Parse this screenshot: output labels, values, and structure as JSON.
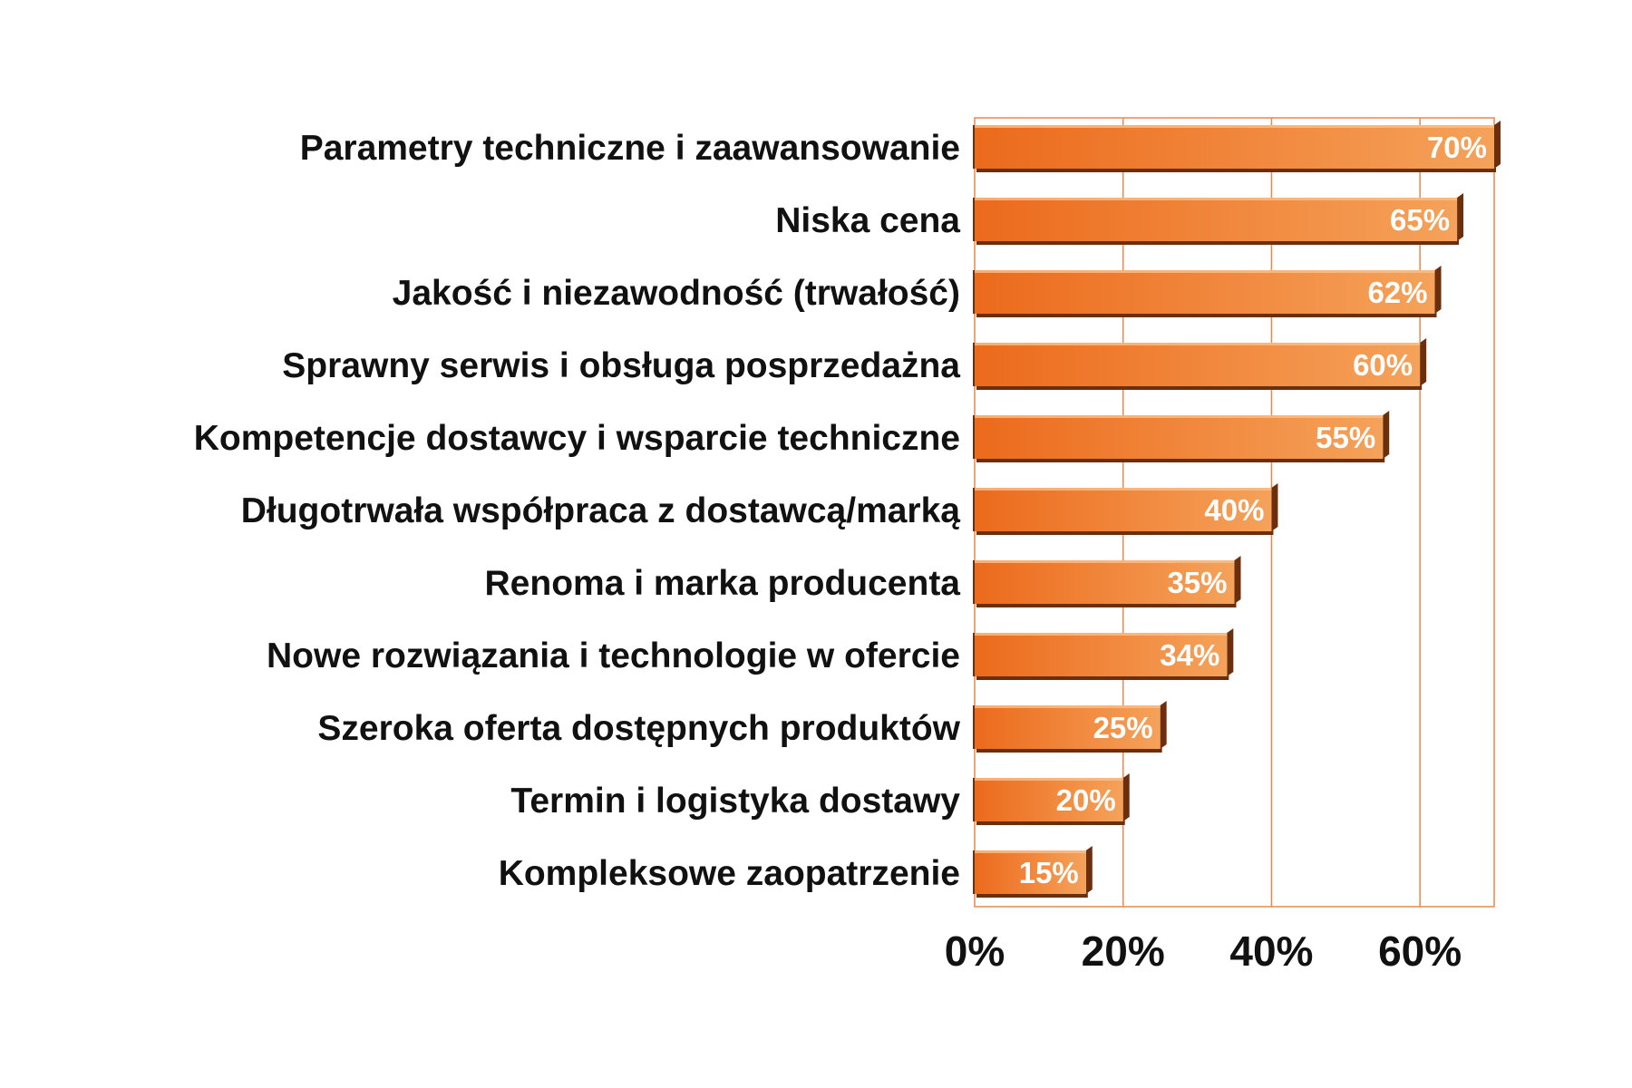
{
  "chart_data": {
    "type": "bar",
    "orientation": "horizontal",
    "title": "",
    "xlabel": "",
    "ylabel": "",
    "categories": [
      "Parametry techniczne i zaawansowanie",
      "Niska cena",
      "Jakość i niezawodność (trwałość)",
      "Sprawny serwis i obsługa posprzedażna",
      "Kompetencje dostawcy i wsparcie techniczne",
      "Długotrwała współpraca z dostawcą/marką",
      "Renoma i marka producenta",
      "Nowe rozwiązania i technologie w ofercie",
      "Szeroka oferta dostępnych produktów",
      "Termin i logistyka dostawy",
      "Kompleksowe zaopatrzenie"
    ],
    "values": [
      70,
      65,
      62,
      60,
      55,
      40,
      35,
      34,
      25,
      20,
      15
    ],
    "value_labels": [
      "70%",
      "65%",
      "62%",
      "60%",
      "55%",
      "40%",
      "35%",
      "34%",
      "25%",
      "20%",
      "15%"
    ],
    "xticks": [
      "0%",
      "20%",
      "40%",
      "60%"
    ],
    "xtick_values": [
      0,
      20,
      40,
      60
    ],
    "xlim": [
      0,
      70
    ],
    "grid": "vertical",
    "legend": "none",
    "colors": {
      "bar_light": "#f5a25a",
      "bar_dark": "#ec6a1c",
      "bar_shadow": "#6b2f0d",
      "grid": "#e8884a",
      "text": "#111111",
      "value_text": "#ffffff"
    }
  }
}
